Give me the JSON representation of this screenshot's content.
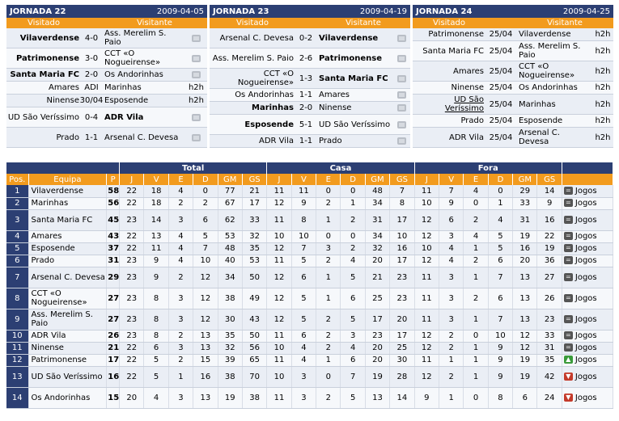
{
  "rounds": [
    {
      "title": "JORNADA 22",
      "date": "2009-04-05",
      "home_label": "Visitado",
      "away_label": "Visitante",
      "matches": [
        {
          "home": "Vilaverdense",
          "home_bold": true,
          "result": "4-0",
          "away": "Ass. Merelim S. Paio",
          "away_bold": false,
          "extra": "tv"
        },
        {
          "home": "Patrimonense",
          "home_bold": true,
          "result": "3-0",
          "away": "CCT «O Nogueirense»",
          "away_bold": false,
          "extra": "tv"
        },
        {
          "home": "Santa Maria FC",
          "home_bold": true,
          "result": "2-0",
          "away": "Os Andorinhas",
          "away_bold": false,
          "extra": "tv"
        },
        {
          "home": "Amares",
          "home_bold": false,
          "result": "ADI",
          "away": "Marinhas",
          "away_bold": false,
          "extra": "h2h"
        },
        {
          "home": "Ninense",
          "home_bold": false,
          "result": "30/04",
          "away": "Esposende",
          "away_bold": false,
          "extra": "h2h"
        },
        {
          "home": "UD São Veríssimo",
          "home_bold": false,
          "result": "0-4",
          "away": "ADR Vila",
          "away_bold": true,
          "extra": "tv"
        },
        {
          "home": "Prado",
          "home_bold": false,
          "result": "1-1",
          "away": "Arsenal C. Devesa",
          "away_bold": false,
          "extra": "tv"
        }
      ]
    },
    {
      "title": "JORNADA 23",
      "date": "2009-04-19",
      "home_label": "Visitado",
      "away_label": "Visitante",
      "matches": [
        {
          "home": "Arsenal C. Devesa",
          "home_bold": false,
          "result": "0-2",
          "away": "Vilaverdense",
          "away_bold": true,
          "extra": "tv"
        },
        {
          "home": "Ass. Merelim S. Paio",
          "home_bold": false,
          "result": "2-6",
          "away": "Patrimonense",
          "away_bold": true,
          "extra": "tv"
        },
        {
          "home": "CCT «O Nogueirense»",
          "home_bold": false,
          "result": "1-3",
          "away": "Santa Maria FC",
          "away_bold": true,
          "extra": "tv"
        },
        {
          "home": "Os Andorinhas",
          "home_bold": false,
          "result": "1-1",
          "away": "Amares",
          "away_bold": false,
          "extra": "tv"
        },
        {
          "home": "Marinhas",
          "home_bold": true,
          "result": "2-0",
          "away": "Ninense",
          "away_bold": false,
          "extra": "tv"
        },
        {
          "home": "Esposende",
          "home_bold": true,
          "result": "5-1",
          "away": "UD São Veríssimo",
          "away_bold": false,
          "extra": "tv"
        },
        {
          "home": "ADR Vila",
          "home_bold": false,
          "result": "1-1",
          "away": "Prado",
          "away_bold": false,
          "extra": "tv"
        }
      ]
    },
    {
      "title": "JORNADA 24",
      "date": "2009-04-25",
      "home_label": "Visitado",
      "away_label": "Visitante",
      "matches": [
        {
          "home": "Patrimonense",
          "home_bold": false,
          "result": "25/04",
          "away": "Vilaverdense",
          "away_bold": false,
          "extra": "h2h"
        },
        {
          "home": "Santa Maria FC",
          "home_bold": false,
          "result": "25/04",
          "away": "Ass. Merelim S. Paio",
          "away_bold": false,
          "extra": "h2h"
        },
        {
          "home": "Amares",
          "home_bold": false,
          "result": "25/04",
          "away": "CCT «O Nogueirense»",
          "away_bold": false,
          "extra": "h2h"
        },
        {
          "home": "Ninense",
          "home_bold": false,
          "result": "25/04",
          "away": "Os Andorinhas",
          "away_bold": false,
          "extra": "h2h"
        },
        {
          "home": "UD São Veríssimo",
          "home_bold": false,
          "home_link": true,
          "result": "25/04",
          "away": "Marinhas",
          "away_bold": false,
          "extra": "h2h"
        },
        {
          "home": "Prado",
          "home_bold": false,
          "result": "25/04",
          "away": "Esposende",
          "away_bold": false,
          "extra": "h2h"
        },
        {
          "home": "ADR Vila",
          "home_bold": false,
          "result": "25/04",
          "away": "Arsenal C. Devesa",
          "away_bold": false,
          "extra": "h2h"
        }
      ]
    }
  ],
  "standings": {
    "groups": {
      "total": "Total",
      "casa": "Casa",
      "fora": "Fora"
    },
    "columns": {
      "pos": "Pos.",
      "team": "Equipa",
      "pts": "P",
      "j": "J",
      "v": "V",
      "e": "E",
      "d": "D",
      "gm": "GM",
      "gs": "GS"
    },
    "jogos_label": "Jogos",
    "rows": [
      {
        "pos": "1",
        "team": "Vilaverdense",
        "p": "58",
        "total": [
          "22",
          "18",
          "4",
          "0",
          "77",
          "21"
        ],
        "casa": [
          "11",
          "11",
          "0",
          "0",
          "48",
          "7"
        ],
        "fora": [
          "11",
          "7",
          "4",
          "0",
          "29",
          "14"
        ],
        "trend": "eq"
      },
      {
        "pos": "2",
        "team": "Marinhas",
        "p": "56",
        "total": [
          "22",
          "18",
          "2",
          "2",
          "67",
          "17"
        ],
        "casa": [
          "12",
          "9",
          "2",
          "1",
          "34",
          "8"
        ],
        "fora": [
          "10",
          "9",
          "0",
          "1",
          "33",
          "9"
        ],
        "trend": "eq"
      },
      {
        "pos": "3",
        "team": "Santa Maria FC",
        "p": "45",
        "total": [
          "23",
          "14",
          "3",
          "6",
          "62",
          "33"
        ],
        "casa": [
          "11",
          "8",
          "1",
          "2",
          "31",
          "17"
        ],
        "fora": [
          "12",
          "6",
          "2",
          "4",
          "31",
          "16"
        ],
        "trend": "eq"
      },
      {
        "pos": "4",
        "team": "Amares",
        "p": "43",
        "total": [
          "22",
          "13",
          "4",
          "5",
          "53",
          "32"
        ],
        "casa": [
          "10",
          "10",
          "0",
          "0",
          "34",
          "10"
        ],
        "fora": [
          "12",
          "3",
          "4",
          "5",
          "19",
          "22"
        ],
        "trend": "eq"
      },
      {
        "pos": "5",
        "team": "Esposende",
        "p": "37",
        "total": [
          "22",
          "11",
          "4",
          "7",
          "48",
          "35"
        ],
        "casa": [
          "12",
          "7",
          "3",
          "2",
          "32",
          "16"
        ],
        "fora": [
          "10",
          "4",
          "1",
          "5",
          "16",
          "19"
        ],
        "trend": "eq"
      },
      {
        "pos": "6",
        "team": "Prado",
        "p": "31",
        "total": [
          "23",
          "9",
          "4",
          "10",
          "40",
          "53"
        ],
        "casa": [
          "11",
          "5",
          "2",
          "4",
          "20",
          "17"
        ],
        "fora": [
          "12",
          "4",
          "2",
          "6",
          "20",
          "36"
        ],
        "trend": "eq"
      },
      {
        "pos": "7",
        "team": "Arsenal C. Devesa",
        "p": "29",
        "total": [
          "23",
          "9",
          "2",
          "12",
          "34",
          "50"
        ],
        "casa": [
          "12",
          "6",
          "1",
          "5",
          "21",
          "23"
        ],
        "fora": [
          "11",
          "3",
          "1",
          "7",
          "13",
          "27"
        ],
        "trend": "eq"
      },
      {
        "pos": "8",
        "team": "CCT «O Nogueirense»",
        "p": "27",
        "total": [
          "23",
          "8",
          "3",
          "12",
          "38",
          "49"
        ],
        "casa": [
          "12",
          "5",
          "1",
          "6",
          "25",
          "23"
        ],
        "fora": [
          "11",
          "3",
          "2",
          "6",
          "13",
          "26"
        ],
        "trend": "eq"
      },
      {
        "pos": "9",
        "team": "Ass. Merelim S. Paio",
        "p": "27",
        "total": [
          "23",
          "8",
          "3",
          "12",
          "30",
          "43"
        ],
        "casa": [
          "12",
          "5",
          "2",
          "5",
          "17",
          "20"
        ],
        "fora": [
          "11",
          "3",
          "1",
          "7",
          "13",
          "23"
        ],
        "trend": "eq"
      },
      {
        "pos": "10",
        "team": "ADR Vila",
        "p": "26",
        "total": [
          "23",
          "8",
          "2",
          "13",
          "35",
          "50"
        ],
        "casa": [
          "11",
          "6",
          "2",
          "3",
          "23",
          "17"
        ],
        "fora": [
          "12",
          "2",
          "0",
          "10",
          "12",
          "33"
        ],
        "trend": "eq"
      },
      {
        "pos": "11",
        "team": "Ninense",
        "p": "21",
        "total": [
          "22",
          "6",
          "3",
          "13",
          "32",
          "56"
        ],
        "casa": [
          "10",
          "4",
          "2",
          "4",
          "20",
          "25"
        ],
        "fora": [
          "12",
          "2",
          "1",
          "9",
          "12",
          "31"
        ],
        "trend": "eq"
      },
      {
        "pos": "12",
        "team": "Patrimonense",
        "p": "17",
        "total": [
          "22",
          "5",
          "2",
          "15",
          "39",
          "65"
        ],
        "casa": [
          "11",
          "4",
          "1",
          "6",
          "20",
          "30"
        ],
        "fora": [
          "11",
          "1",
          "1",
          "9",
          "19",
          "35"
        ],
        "trend": "up"
      },
      {
        "pos": "13",
        "team": "UD São Veríssimo",
        "p": "16",
        "total": [
          "22",
          "5",
          "1",
          "16",
          "38",
          "70"
        ],
        "casa": [
          "10",
          "3",
          "0",
          "7",
          "19",
          "28"
        ],
        "fora": [
          "12",
          "2",
          "1",
          "9",
          "19",
          "42"
        ],
        "trend": "dn"
      },
      {
        "pos": "14",
        "team": "Os Andorinhas",
        "p": "15",
        "total": [
          "20",
          "4",
          "3",
          "13",
          "19",
          "38"
        ],
        "casa": [
          "11",
          "3",
          "2",
          "5",
          "13",
          "14"
        ],
        "fora": [
          "9",
          "1",
          "0",
          "8",
          "6",
          "24"
        ],
        "trend": "dn"
      }
    ]
  }
}
